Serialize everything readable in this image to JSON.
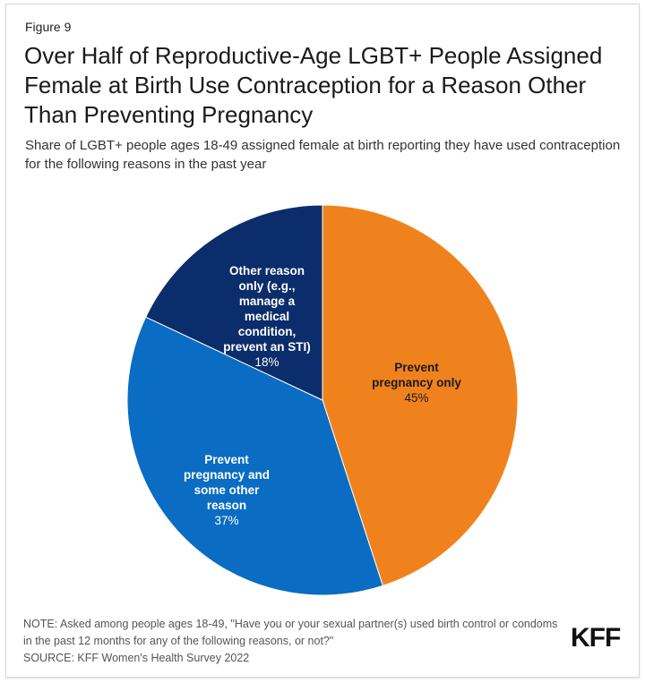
{
  "figure_label": "Figure 9",
  "chart_data": {
    "type": "pie",
    "title": "Over Half of Reproductive-Age LGBT+ People Assigned Female at Birth Use Contraception for a Reason Other Than Preventing Pregnancy",
    "subtitle": "Share of LGBT+ people ages 18-49 assigned female at birth reporting they have used contraception for the following reasons in the past year",
    "start": "top",
    "direction": "clockwise",
    "slices": [
      {
        "label": "Prevent pregnancy only",
        "value": 45,
        "value_label": "45%",
        "color": "#F0821E",
        "text_color": "#1a1a1a"
      },
      {
        "label": "Prevent pregnancy and some other reason",
        "value": 37,
        "value_label": "37%",
        "color": "#0A6CC2",
        "text_color": "#ffffff"
      },
      {
        "label": "Other reason only (e.g., manage a medical condition, prevent an STI)",
        "value": 18,
        "value_label": "18%",
        "color": "#0C2D6B",
        "text_color": "#ffffff"
      }
    ]
  },
  "note": "NOTE: Asked among people ages 18-49, \"Have you or your sexual partner(s) used birth control or condoms in the past 12 months for any of the following reasons, or not?\"",
  "source": "SOURCE: KFF Women's Health Survey 2022",
  "logo_text": "KFF"
}
